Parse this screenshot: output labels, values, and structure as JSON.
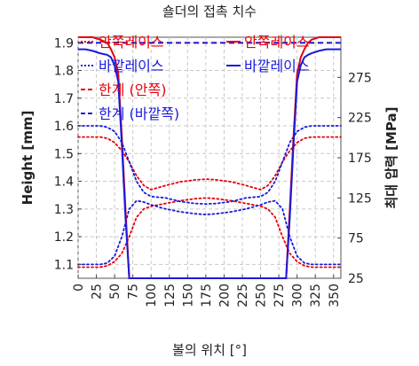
{
  "chart_data": {
    "type": "line",
    "title": "숄더의 접촉 치수",
    "xlabel": "볼의 위치 [°]",
    "ylabel_left": "Height [mm]",
    "ylabel_right": "최대 압력 [MPa]",
    "xlim": [
      0,
      360
    ],
    "ylim_left": [
      1.05,
      1.92
    ],
    "ylim_right": [
      25,
      325
    ],
    "x_ticks": [
      0,
      25,
      50,
      75,
      100,
      125,
      150,
      175,
      200,
      225,
      250,
      275,
      300,
      325,
      350
    ],
    "y_left_ticks": [
      1.1,
      1.2,
      1.3,
      1.4,
      1.5,
      1.6,
      1.7,
      1.8,
      1.9
    ],
    "y_right_ticks": [
      25,
      75,
      125,
      175,
      225,
      275
    ],
    "grid": true,
    "legend_left": [
      {
        "label": "안쪽레이스",
        "style": "dotted",
        "color": "#e8000b"
      },
      {
        "label": "바깥레이스",
        "style": "dotted",
        "color": "#1a1adb"
      },
      {
        "label": "한계 (안쪽)",
        "style": "dashed",
        "color": "#e8000b"
      },
      {
        "label": "한계 (바깥쪽)",
        "style": "dashed",
        "color": "#1a1adb"
      }
    ],
    "legend_right": [
      {
        "label": "안쪽레이스",
        "style": "solid",
        "color": "#e8000b"
      },
      {
        "label": "바깥레이스",
        "style": "solid",
        "color": "#1a1adb"
      }
    ],
    "series": [
      {
        "name": "안쪽레이스",
        "axis": "left",
        "style": "dotted",
        "color": "#e8000b",
        "role": "upper",
        "x": [
          0,
          10,
          20,
          30,
          40,
          50,
          60,
          70,
          80,
          90,
          100,
          120,
          140,
          160,
          175,
          190,
          210,
          230,
          250,
          260,
          270,
          280,
          290,
          300,
          310,
          320,
          330,
          340,
          350,
          360
        ],
        "y": [
          1.56,
          1.56,
          1.56,
          1.56,
          1.555,
          1.54,
          1.51,
          1.47,
          1.42,
          1.385,
          1.37,
          1.385,
          1.398,
          1.405,
          1.408,
          1.405,
          1.398,
          1.385,
          1.37,
          1.385,
          1.42,
          1.47,
          1.51,
          1.54,
          1.555,
          1.56,
          1.56,
          1.56,
          1.56,
          1.56
        ]
      },
      {
        "name": "안쪽레이스",
        "axis": "left",
        "style": "dotted",
        "color": "#e8000b",
        "role": "lower",
        "x": [
          0,
          10,
          20,
          30,
          40,
          50,
          60,
          70,
          80,
          90,
          100,
          120,
          140,
          160,
          175,
          190,
          210,
          230,
          250,
          260,
          270,
          280,
          290,
          300,
          310,
          320,
          330,
          340,
          350,
          360
        ],
        "y": [
          1.09,
          1.09,
          1.09,
          1.09,
          1.095,
          1.11,
          1.14,
          1.2,
          1.27,
          1.3,
          1.31,
          1.32,
          1.33,
          1.337,
          1.34,
          1.337,
          1.33,
          1.32,
          1.31,
          1.3,
          1.27,
          1.2,
          1.14,
          1.11,
          1.095,
          1.09,
          1.09,
          1.09,
          1.09,
          1.09
        ]
      },
      {
        "name": "바깥레이스",
        "axis": "left",
        "style": "dotted",
        "color": "#1a1adb",
        "role": "upper",
        "x": [
          0,
          10,
          20,
          30,
          40,
          50,
          60,
          70,
          80,
          90,
          100,
          120,
          140,
          160,
          175,
          190,
          210,
          230,
          250,
          260,
          270,
          280,
          290,
          300,
          310,
          320,
          330,
          340,
          350,
          360
        ],
        "y": [
          1.6,
          1.6,
          1.6,
          1.6,
          1.595,
          1.58,
          1.54,
          1.47,
          1.4,
          1.36,
          1.345,
          1.34,
          1.327,
          1.32,
          1.318,
          1.32,
          1.327,
          1.34,
          1.345,
          1.36,
          1.4,
          1.47,
          1.54,
          1.58,
          1.595,
          1.6,
          1.6,
          1.6,
          1.6,
          1.6
        ]
      },
      {
        "name": "바깥레이스",
        "axis": "left",
        "style": "dotted",
        "color": "#1a1adb",
        "role": "lower",
        "x": [
          0,
          10,
          20,
          30,
          40,
          50,
          60,
          70,
          80,
          90,
          100,
          120,
          140,
          160,
          175,
          190,
          210,
          230,
          250,
          260,
          270,
          280,
          290,
          300,
          310,
          320,
          330,
          340,
          350,
          360
        ],
        "y": [
          1.1,
          1.1,
          1.1,
          1.1,
          1.105,
          1.13,
          1.2,
          1.3,
          1.33,
          1.325,
          1.315,
          1.3,
          1.29,
          1.283,
          1.28,
          1.283,
          1.29,
          1.3,
          1.315,
          1.325,
          1.33,
          1.3,
          1.2,
          1.13,
          1.105,
          1.1,
          1.1,
          1.1,
          1.1,
          1.1
        ]
      },
      {
        "name": "한계 (안쪽)",
        "axis": "left",
        "style": "dashed",
        "color": "#e8000b",
        "x": [
          0,
          360
        ],
        "y": [
          1.9,
          1.9
        ]
      },
      {
        "name": "한계 (바깥쪽)",
        "axis": "left",
        "style": "dashed",
        "color": "#1a1adb",
        "x": [
          0,
          360
        ],
        "y": [
          1.9,
          1.9
        ]
      },
      {
        "name": "안쪽레이스",
        "axis": "right",
        "style": "solid",
        "color": "#e8000b",
        "x": [
          0,
          10,
          20,
          30,
          40,
          45,
          50,
          55,
          60,
          65,
          70,
          75,
          285,
          290,
          295,
          300,
          305,
          310,
          315,
          320,
          330,
          340,
          350,
          360
        ],
        "y": [
          325,
          325,
          325,
          322,
          318,
          310,
          300,
          280,
          200,
          110,
          25,
          25,
          25,
          110,
          200,
          280,
          300,
          310,
          318,
          322,
          325,
          325,
          325,
          325
        ]
      },
      {
        "name": "바깥레이스",
        "axis": "right",
        "style": "solid",
        "color": "#1a1adb",
        "x": [
          0,
          10,
          20,
          30,
          40,
          45,
          50,
          55,
          60,
          65,
          70,
          75,
          285,
          290,
          295,
          300,
          305,
          310,
          315,
          320,
          330,
          340,
          350,
          360
        ],
        "y": [
          310,
          310,
          308,
          305,
          303,
          300,
          290,
          270,
          190,
          100,
          25,
          25,
          25,
          100,
          190,
          270,
          290,
          300,
          303,
          305,
          308,
          310,
          310,
          310
        ]
      }
    ]
  }
}
